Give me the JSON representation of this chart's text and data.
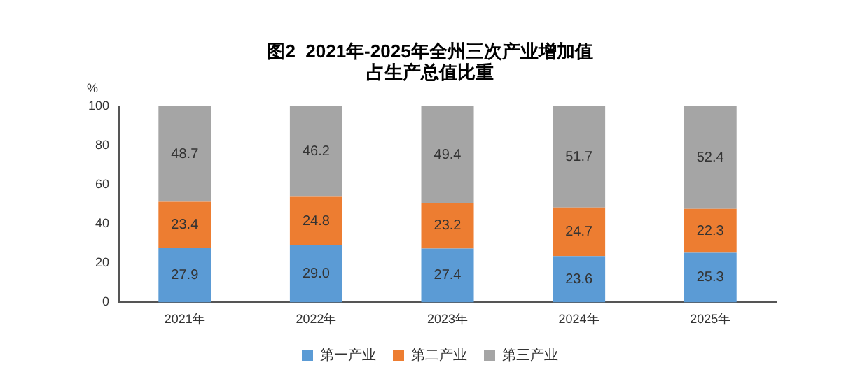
{
  "chart_data": {
    "type": "bar",
    "stacked": true,
    "title": "图2  2021年-2025年全州三次产业增加值占生产总值比重",
    "ylabel": "%",
    "categories": [
      "2021年",
      "2022年",
      "2023年",
      "2024年",
      "2025年"
    ],
    "series": [
      {
        "name": "第一产业",
        "color": "#5b9bd5",
        "values": [
          27.9,
          29.0,
          27.4,
          23.6,
          25.3
        ],
        "value_labels": [
          "27.9",
          "29.0",
          "27.4",
          "23.6",
          "25.3"
        ]
      },
      {
        "name": "第二产业",
        "color": "#ed7d31",
        "values": [
          23.4,
          24.8,
          23.2,
          24.7,
          22.3
        ],
        "value_labels": [
          "23.4",
          "24.8",
          "23.2",
          "24.7",
          "22.3"
        ]
      },
      {
        "name": "第三产业",
        "color": "#a5a5a5",
        "values": [
          48.7,
          46.2,
          49.4,
          51.7,
          52.4
        ],
        "value_labels": [
          "48.7",
          "46.2",
          "49.4",
          "51.7",
          "52.4"
        ]
      }
    ],
    "ylim": [
      0,
      100
    ],
    "yticks": [
      0,
      20,
      40,
      60,
      80,
      100
    ],
    "grid": false,
    "legend": "bottom"
  }
}
